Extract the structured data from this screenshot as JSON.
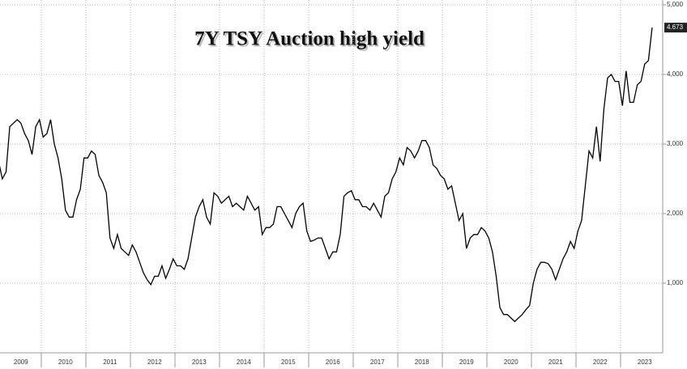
{
  "chart_data": {
    "type": "line",
    "title": "7Y TSY Auction high yield",
    "categories": [
      null,
      null,
      null,
      null,
      null,
      null,
      "2009",
      null,
      null,
      null,
      null,
      null,
      null,
      null,
      null,
      null,
      null,
      null,
      "2010",
      null,
      null,
      null,
      null,
      null,
      null,
      null,
      null,
      null,
      null,
      null,
      "2011",
      null,
      null,
      null,
      null,
      null,
      null,
      null,
      null,
      null,
      null,
      null,
      "2012",
      null,
      null,
      null,
      null,
      null,
      null,
      null,
      null,
      null,
      null,
      null,
      "2013",
      null,
      null,
      null,
      null,
      null,
      null,
      null,
      null,
      null,
      null,
      null,
      "2014",
      null,
      null,
      null,
      null,
      null,
      null,
      null,
      null,
      null,
      null,
      null,
      "2015",
      null,
      null,
      null,
      null,
      null,
      null,
      null,
      null,
      null,
      null,
      null,
      "2016",
      null,
      null,
      null,
      null,
      null,
      null,
      null,
      null,
      null,
      null,
      null,
      "2017",
      null,
      null,
      null,
      null,
      null,
      null,
      null,
      null,
      null,
      null,
      null,
      "2018",
      null,
      null,
      null,
      null,
      null,
      null,
      null,
      null,
      null,
      null,
      null,
      "2019",
      null,
      null,
      null,
      null,
      null,
      null,
      null,
      null,
      null,
      null,
      null,
      "2020",
      null,
      null,
      null,
      null,
      null,
      null,
      null,
      null,
      null,
      null,
      null,
      "2021",
      null,
      null,
      null,
      null,
      null,
      null,
      null,
      null,
      null,
      null,
      null,
      "2022",
      null,
      null,
      null,
      null,
      null,
      null,
      null,
      null,
      null,
      null,
      null,
      "2023",
      null,
      null
    ],
    "series": [
      {
        "name": "7Y TSY Auction high yield",
        "color": "#000000",
        "values": [
          2750,
          2500,
          2600,
          3250,
          3300,
          3350,
          3300,
          3150,
          3050,
          2850,
          3250,
          3350,
          3100,
          3150,
          3350,
          3000,
          2800,
          2500,
          2050,
          1950,
          1950,
          2200,
          2350,
          2800,
          2800,
          2900,
          2850,
          2550,
          2450,
          2300,
          1650,
          1500,
          1700,
          1500,
          1450,
          1400,
          1550,
          1450,
          1300,
          1150,
          1050,
          980,
          1100,
          1100,
          1250,
          1070,
          1200,
          1350,
          1250,
          1250,
          1200,
          1350,
          1650,
          1950,
          2100,
          2200,
          1950,
          1850,
          2300,
          2250,
          2150,
          2200,
          2250,
          2100,
          2150,
          2100,
          2050,
          2250,
          2150,
          2050,
          2100,
          1700,
          1800,
          1800,
          1850,
          2100,
          2100,
          2000,
          1900,
          1800,
          2000,
          2100,
          2150,
          1750,
          1600,
          1620,
          1650,
          1650,
          1500,
          1350,
          1450,
          1450,
          1700,
          2250,
          2300,
          2330,
          2200,
          2200,
          2100,
          2100,
          2050,
          2150,
          2050,
          1950,
          2250,
          2300,
          2500,
          2600,
          2800,
          2700,
          2950,
          2900,
          2800,
          2900,
          3050,
          3050,
          2950,
          2700,
          2650,
          2550,
          2500,
          2350,
          2400,
          2150,
          1900,
          2000,
          1500,
          1650,
          1700,
          1700,
          1800,
          1750,
          1650,
          1450,
          1100,
          650,
          550,
          550,
          500,
          450,
          500,
          550,
          620,
          680,
          1000,
          1200,
          1300,
          1300,
          1280,
          1200,
          1050,
          1200,
          1350,
          1450,
          1600,
          1500,
          1750,
          1900,
          2400,
          2900,
          2800,
          3250,
          2750,
          3500,
          3950,
          4000,
          3900,
          3900,
          3550,
          4050,
          3600,
          3600,
          3850,
          3900,
          4150,
          4200,
          4673
        ],
        "value_labels": [
          null,
          null,
          null,
          null,
          null,
          null,
          null,
          null,
          null,
          null,
          null,
          null,
          null,
          null,
          null,
          null,
          null,
          null,
          null,
          null,
          null,
          null,
          null,
          null,
          null,
          null,
          null,
          null,
          null,
          null,
          null,
          null,
          null,
          null,
          null,
          null,
          null,
          null,
          null,
          null,
          null,
          null,
          null,
          null,
          null,
          null,
          null,
          null,
          null,
          null,
          null,
          null,
          null,
          null,
          null,
          null,
          null,
          null,
          null,
          null,
          null,
          null,
          null,
          null,
          null,
          null,
          null,
          null,
          null,
          null,
          null,
          null,
          null,
          null,
          null,
          null,
          null,
          null,
          null,
          null,
          null,
          null,
          null,
          null,
          null,
          null,
          null,
          null,
          null,
          null,
          null,
          null,
          null,
          null,
          null,
          null,
          null,
          null,
          null,
          null,
          null,
          null,
          null,
          null,
          null,
          null,
          null,
          null,
          null,
          null,
          null,
          null,
          null,
          null,
          null,
          null,
          null,
          null,
          null,
          null,
          null,
          null,
          null,
          null,
          null,
          null,
          null,
          null,
          null,
          null,
          null,
          null,
          null,
          null,
          null,
          null,
          null,
          null,
          null,
          null,
          null,
          null,
          null,
          null,
          null,
          null,
          null,
          null,
          null,
          null,
          null,
          null,
          null,
          null,
          null,
          null,
          null,
          null,
          null,
          null,
          null,
          null,
          null,
          null,
          null,
          null,
          null,
          null,
          null,
          null,
          null,
          null,
          null,
          null,
          null,
          null,
          "4.673"
        ]
      }
    ],
    "ylim": [
      0,
      5000
    ],
    "yticks": [
      {
        "value": 1000,
        "label": "1,000"
      },
      {
        "value": 2000,
        "label": "2,000"
      },
      {
        "value": 3000,
        "label": "3,000"
      },
      {
        "value": 4000,
        "label": "4,000"
      },
      {
        "value": 5000,
        "label": "5,000"
      }
    ],
    "grid": true
  }
}
